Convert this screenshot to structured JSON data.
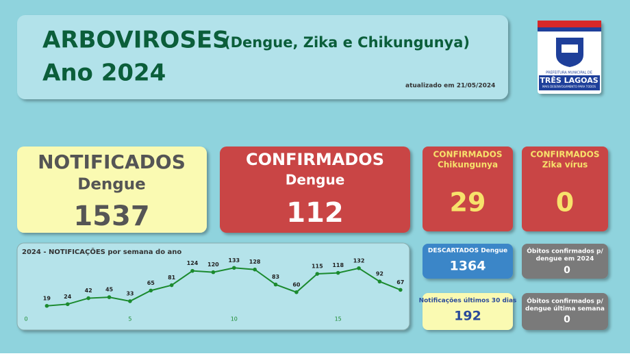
{
  "header": {
    "title": "ARBOVIROSES",
    "subtitle": "(Dengue, Zika e Chikungunya)",
    "year": "Ano 2024",
    "updated": "atualizado em 21/05/2024"
  },
  "logo": {
    "line1": "PREFEITURA MUNICIPAL DE",
    "name": "TRÊS LAGOAS",
    "slogan": "MAIS DESENVOLVIMENTO PARA TODOS"
  },
  "cards": {
    "notificados": {
      "title": "NOTIFICADOS",
      "subtitle": "Dengue",
      "value": "1537"
    },
    "confirmados": {
      "title": "CONFIRMADOS",
      "subtitle": "Dengue",
      "value": "112"
    },
    "chikungunya": {
      "title": "CONFIRMADOS",
      "subtitle": "Chikungunya",
      "value": "29"
    },
    "zika": {
      "title": "CONFIRMADOS",
      "subtitle": "Zika vírus",
      "value": "0"
    },
    "descartados": {
      "title": "DESCARTADOS Dengue",
      "value": "1364"
    },
    "obitos_ano": {
      "lines": [
        "Óbitos confirmados p/",
        "dengue em 2024"
      ],
      "value": "0"
    },
    "notificacoes_30": {
      "title": "Notificações últimos 30 dias",
      "value": "192"
    },
    "obitos_semana": {
      "lines": [
        "Óbitos confirmados p/",
        "dengue última semana"
      ],
      "value": "0"
    }
  },
  "chart_data": {
    "type": "line",
    "title": "2024 - NOTIFICAÇÕES por semana do ano",
    "x": [
      1,
      2,
      3,
      4,
      5,
      6,
      7,
      8,
      9,
      10,
      11,
      12,
      13,
      14,
      15,
      16,
      17,
      18
    ],
    "values": [
      19,
      24,
      42,
      45,
      33,
      65,
      81,
      124,
      120,
      133,
      128,
      83,
      60,
      115,
      118,
      132,
      92,
      67
    ],
    "color": "#1b8a2e",
    "xlim": [
      0,
      18.5
    ],
    "xticks": [
      0,
      5,
      10,
      15
    ],
    "ylim": [
      0,
      150
    ]
  }
}
